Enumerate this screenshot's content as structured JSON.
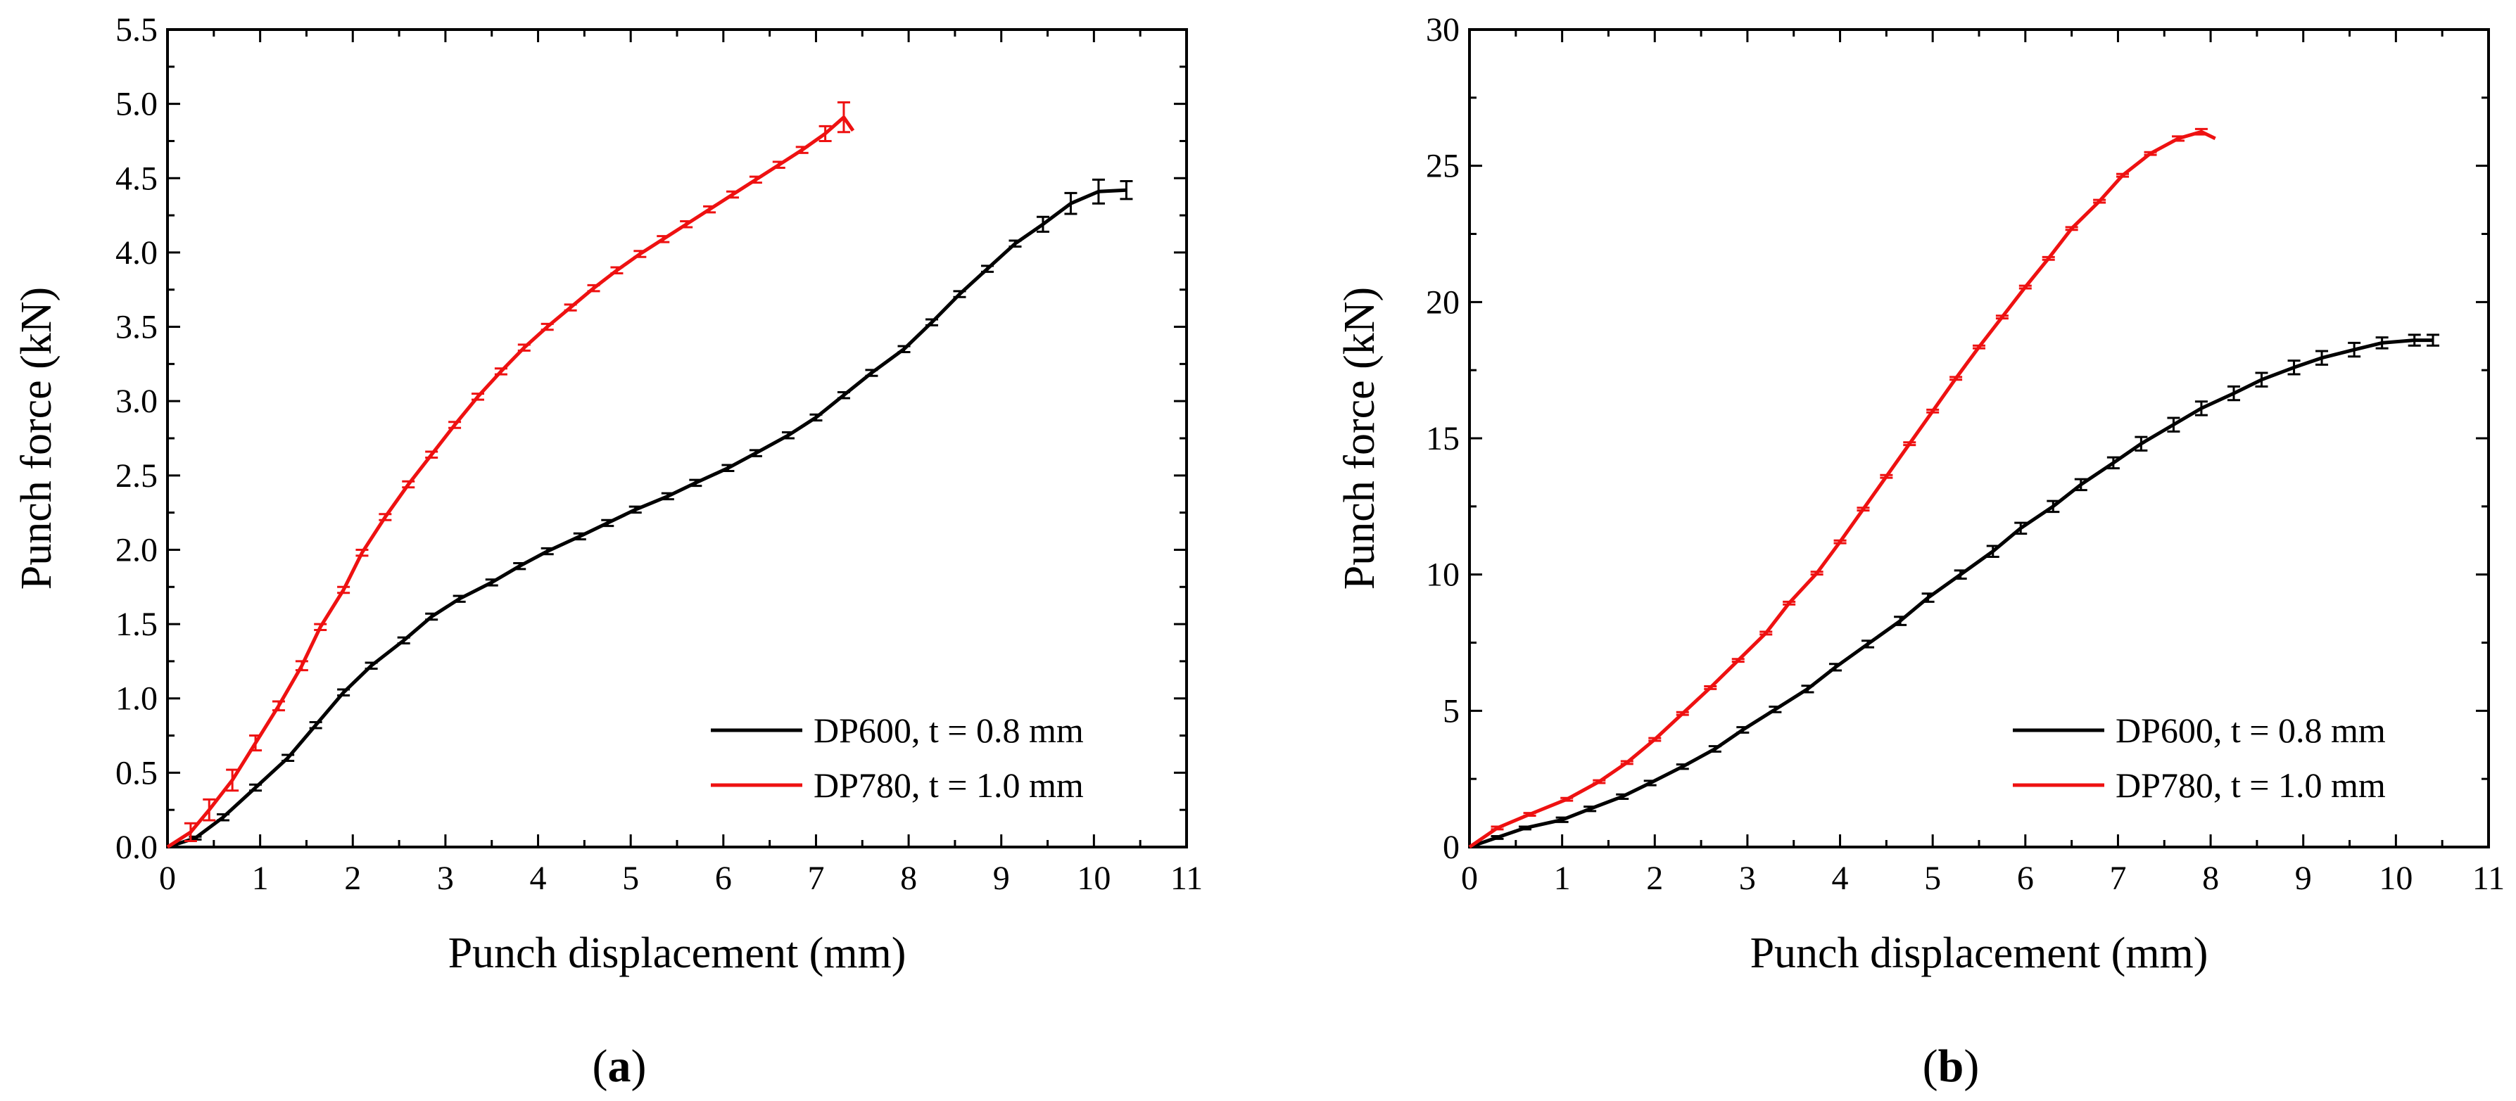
{
  "colors": {
    "dp600": "#000000",
    "dp780": "#ee1111"
  },
  "chart_data": [
    {
      "type": "line",
      "panel": "a",
      "panel_label": "a",
      "xlabel": "Punch displacement (mm)",
      "ylabel": "Punch force (kN)",
      "xlim": [
        0,
        11
      ],
      "ylim": [
        0,
        5.5
      ],
      "xticks": [
        0,
        1,
        2,
        3,
        4,
        5,
        6,
        7,
        8,
        9,
        10,
        11
      ],
      "yticks": [
        0.0,
        0.5,
        1.0,
        1.5,
        2.0,
        2.5,
        3.0,
        3.5,
        4.0,
        4.5,
        5.0,
        5.5
      ],
      "ytick_labels": [
        "0.0",
        "0.5",
        "1.0",
        "1.5",
        "2.0",
        "2.5",
        "3.0",
        "3.5",
        "4.0",
        "4.5",
        "5.0",
        "5.5"
      ],
      "legend_position": "bottom-right",
      "series": [
        {
          "name": "DP600, t = 0.8 mm",
          "color": "#000000",
          "x": [
            0,
            0.3,
            0.6,
            0.95,
            1.3,
            1.6,
            1.9,
            2.2,
            2.55,
            2.85,
            3.15,
            3.5,
            3.8,
            4.1,
            4.45,
            4.75,
            5.05,
            5.4,
            5.7,
            6.05,
            6.35,
            6.7,
            7.0,
            7.3,
            7.6,
            7.95,
            8.25,
            8.55,
            8.85,
            9.15,
            9.45,
            9.75,
            10.05,
            10.35
          ],
          "y": [
            0,
            0.06,
            0.2,
            0.4,
            0.6,
            0.82,
            1.04,
            1.22,
            1.39,
            1.55,
            1.67,
            1.78,
            1.89,
            1.99,
            2.09,
            2.18,
            2.27,
            2.36,
            2.45,
            2.55,
            2.65,
            2.77,
            2.89,
            3.04,
            3.19,
            3.35,
            3.53,
            3.72,
            3.89,
            4.06,
            4.19,
            4.33,
            4.41,
            4.42
          ],
          "err": [
            0,
            0.01,
            0.02,
            0.02,
            0.02,
            0.02,
            0.02,
            0.02,
            0.02,
            0.02,
            0.02,
            0.02,
            0.02,
            0.02,
            0.02,
            0.02,
            0.02,
            0.02,
            0.02,
            0.02,
            0.02,
            0.02,
            0.02,
            0.02,
            0.02,
            0.02,
            0.02,
            0.02,
            0.02,
            0.02,
            0.05,
            0.07,
            0.08,
            0.06
          ]
        },
        {
          "name": "DP780, t = 1.0 mm",
          "color": "#ee1111",
          "x": [
            0,
            0.25,
            0.45,
            0.7,
            0.95,
            1.2,
            1.45,
            1.65,
            1.9,
            2.1,
            2.35,
            2.6,
            2.85,
            3.1,
            3.35,
            3.6,
            3.85,
            4.1,
            4.35,
            4.6,
            4.85,
            5.1,
            5.35,
            5.6,
            5.85,
            6.1,
            6.35,
            6.6,
            6.85,
            7.1,
            7.3,
            7.4
          ],
          "y": [
            0,
            0.1,
            0.25,
            0.45,
            0.7,
            0.95,
            1.22,
            1.48,
            1.73,
            1.98,
            2.22,
            2.44,
            2.64,
            2.84,
            3.03,
            3.2,
            3.36,
            3.5,
            3.63,
            3.76,
            3.88,
            3.99,
            4.09,
            4.19,
            4.29,
            4.39,
            4.49,
            4.59,
            4.69,
            4.8,
            4.91,
            4.82
          ],
          "err": [
            0,
            0.06,
            0.07,
            0.07,
            0.05,
            0.03,
            0.03,
            0.02,
            0.02,
            0.02,
            0.02,
            0.02,
            0.02,
            0.02,
            0.02,
            0.02,
            0.02,
            0.02,
            0.02,
            0.02,
            0.02,
            0.02,
            0.02,
            0.02,
            0.02,
            0.02,
            0.02,
            0.02,
            0.02,
            0.05,
            0.1,
            0
          ]
        }
      ]
    },
    {
      "type": "line",
      "panel": "b",
      "panel_label": "b",
      "xlabel": "Punch displacement (mm)",
      "ylabel": "Punch force (kN)",
      "xlim": [
        0,
        11
      ],
      "ylim": [
        0,
        30
      ],
      "xticks": [
        0,
        1,
        2,
        3,
        4,
        5,
        6,
        7,
        8,
        9,
        10,
        11
      ],
      "yticks": [
        0,
        5,
        10,
        15,
        20,
        25,
        30
      ],
      "ytick_labels": [
        "0",
        "5",
        "10",
        "15",
        "20",
        "25",
        "30"
      ],
      "legend_position": "bottom-right",
      "series": [
        {
          "name": "DP600, t = 0.8 mm",
          "color": "#000000",
          "x": [
            0,
            0.3,
            0.6,
            1.0,
            1.3,
            1.65,
            1.95,
            2.3,
            2.65,
            2.95,
            3.3,
            3.65,
            3.95,
            4.3,
            4.65,
            4.95,
            5.3,
            5.65,
            5.95,
            6.3,
            6.6,
            6.95,
            7.25,
            7.6,
            7.9,
            8.25,
            8.55,
            8.9,
            9.2,
            9.55,
            9.85,
            10.2,
            10.4
          ],
          "y": [
            0,
            0.35,
            0.7,
            1.0,
            1.4,
            1.85,
            2.35,
            2.95,
            3.6,
            4.3,
            5.05,
            5.8,
            6.6,
            7.45,
            8.3,
            9.15,
            10.0,
            10.85,
            11.7,
            12.5,
            13.3,
            14.1,
            14.8,
            15.5,
            16.1,
            16.65,
            17.15,
            17.6,
            17.95,
            18.25,
            18.5,
            18.6,
            18.6
          ],
          "err": [
            0,
            0.05,
            0.05,
            0.08,
            0.08,
            0.08,
            0.08,
            0.08,
            0.1,
            0.1,
            0.1,
            0.12,
            0.12,
            0.12,
            0.15,
            0.15,
            0.15,
            0.2,
            0.2,
            0.2,
            0.2,
            0.2,
            0.25,
            0.25,
            0.25,
            0.25,
            0.25,
            0.25,
            0.25,
            0.25,
            0.2,
            0.2,
            0.2
          ]
        },
        {
          "name": "DP780, t = 1.0 mm",
          "color": "#ee1111",
          "x": [
            0,
            0.3,
            0.65,
            1.05,
            1.4,
            1.7,
            2.0,
            2.3,
            2.6,
            2.9,
            3.2,
            3.45,
            3.75,
            4.0,
            4.25,
            4.5,
            4.75,
            5.0,
            5.25,
            5.5,
            5.75,
            6.0,
            6.25,
            6.5,
            6.8,
            7.05,
            7.35,
            7.65,
            7.9,
            8.05
          ],
          "y": [
            0,
            0.7,
            1.2,
            1.75,
            2.4,
            3.1,
            3.95,
            4.9,
            5.85,
            6.85,
            7.85,
            8.95,
            10.05,
            11.2,
            12.4,
            13.6,
            14.8,
            16.0,
            17.2,
            18.35,
            19.45,
            20.55,
            21.6,
            22.7,
            23.7,
            24.65,
            25.45,
            26.0,
            26.25,
            26.0
          ],
          "err": [
            0,
            0.05,
            0.05,
            0.05,
            0.05,
            0.05,
            0.05,
            0.05,
            0.05,
            0.05,
            0.05,
            0.05,
            0.05,
            0.05,
            0.05,
            0.05,
            0.05,
            0.05,
            0.05,
            0.05,
            0.05,
            0.05,
            0.05,
            0.05,
            0.05,
            0.05,
            0.05,
            0.08,
            0.1,
            0
          ]
        }
      ]
    }
  ]
}
